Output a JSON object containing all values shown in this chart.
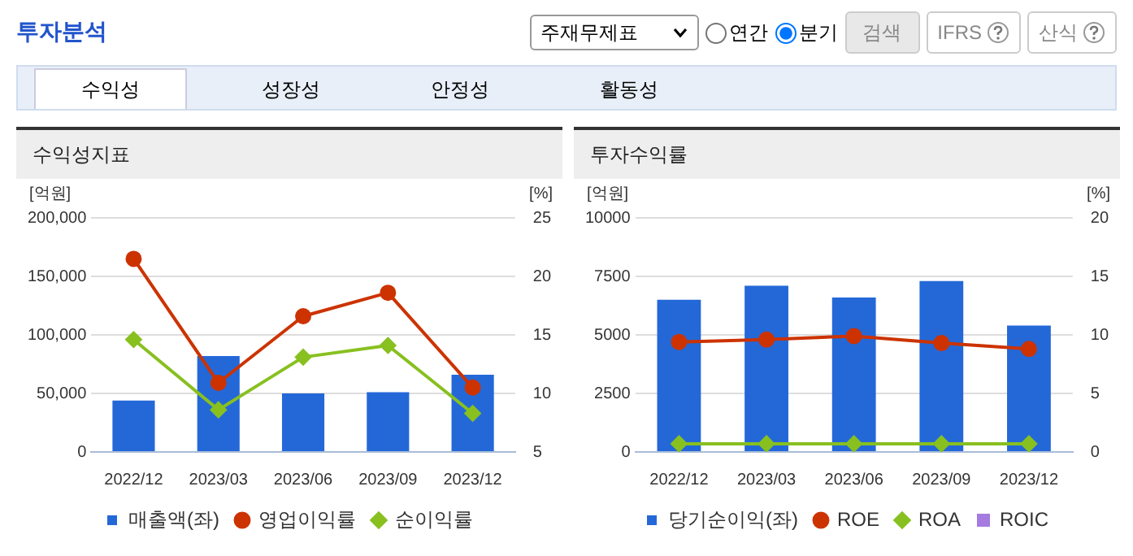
{
  "chart_data": [
    {
      "type": "other",
      "title": "투자분석",
      "annotations": [
        "주재무제표",
        "연간",
        "분기",
        "검색",
        "IFRS",
        "산식",
        "수익성",
        "성장성",
        "안정성",
        "활동성"
      ]
    },
    {
      "type": "bar",
      "title": "수익성지표",
      "ylabel": "[억원]",
      "y2label": "[%]",
      "categories": [
        "2022/12",
        "2023/03",
        "2023/06",
        "2023/09",
        "2023/12"
      ],
      "series": [
        {
          "name": "매출액(좌)",
          "type": "bar",
          "color": "#2468d8",
          "values": [
            44000,
            82000,
            50000,
            51000,
            66000
          ]
        },
        {
          "name": "영업이익률",
          "type": "line",
          "axis": "y2",
          "color": "#cc3300",
          "marker": "circle",
          "values": [
            21.5,
            10.9,
            16.6,
            18.6,
            10.5
          ]
        },
        {
          "name": "순이익률",
          "type": "line",
          "axis": "y2",
          "color": "#88c020",
          "marker": "diamond",
          "values": [
            14.6,
            8.6,
            13.1,
            14.1,
            8.3
          ]
        }
      ],
      "ylim": [
        0,
        200000
      ],
      "yticks": [
        {
          "value": 0,
          "label": "0"
        },
        {
          "value": 50000,
          "label": "50,000"
        },
        {
          "value": 100000,
          "label": "100,000"
        },
        {
          "value": 150000,
          "label": "150,000"
        },
        {
          "value": 200000,
          "label": "200,000"
        }
      ],
      "y2lim": [
        5,
        25
      ],
      "y2ticks": [
        5,
        10,
        15,
        20,
        25
      ],
      "grid": "y",
      "legend": "bottom"
    },
    {
      "type": "bar",
      "title": "투자수익률",
      "ylabel": "[억원]",
      "y2label": "[%]",
      "categories": [
        "2022/12",
        "2023/03",
        "2023/06",
        "2023/09",
        "2023/12"
      ],
      "series": [
        {
          "name": "당기순이익(좌)",
          "type": "bar",
          "color": "#2468d8",
          "values": [
            6500,
            7100,
            6600,
            7300,
            5400
          ]
        },
        {
          "name": "ROE",
          "type": "line",
          "axis": "y2",
          "color": "#cc3300",
          "marker": "circle",
          "values": [
            9.4,
            9.6,
            9.9,
            9.3,
            8.8
          ]
        },
        {
          "name": "ROA",
          "type": "line",
          "axis": "y2",
          "color": "#88c020",
          "marker": "diamond",
          "values": [
            0.7,
            0.7,
            0.7,
            0.7,
            0.7
          ]
        },
        {
          "name": "ROIC",
          "type": "line",
          "axis": "y2",
          "color": "#a57be0",
          "marker": "square",
          "values": [
            null,
            null,
            null,
            null,
            null
          ]
        }
      ],
      "ylim": [
        0,
        10000
      ],
      "yticks": [
        0,
        2500,
        5000,
        7500,
        10000
      ],
      "y2lim": [
        0,
        20
      ],
      "y2ticks": [
        0,
        5,
        10,
        15,
        20
      ],
      "grid": "y",
      "legend": "bottom"
    }
  ]
}
